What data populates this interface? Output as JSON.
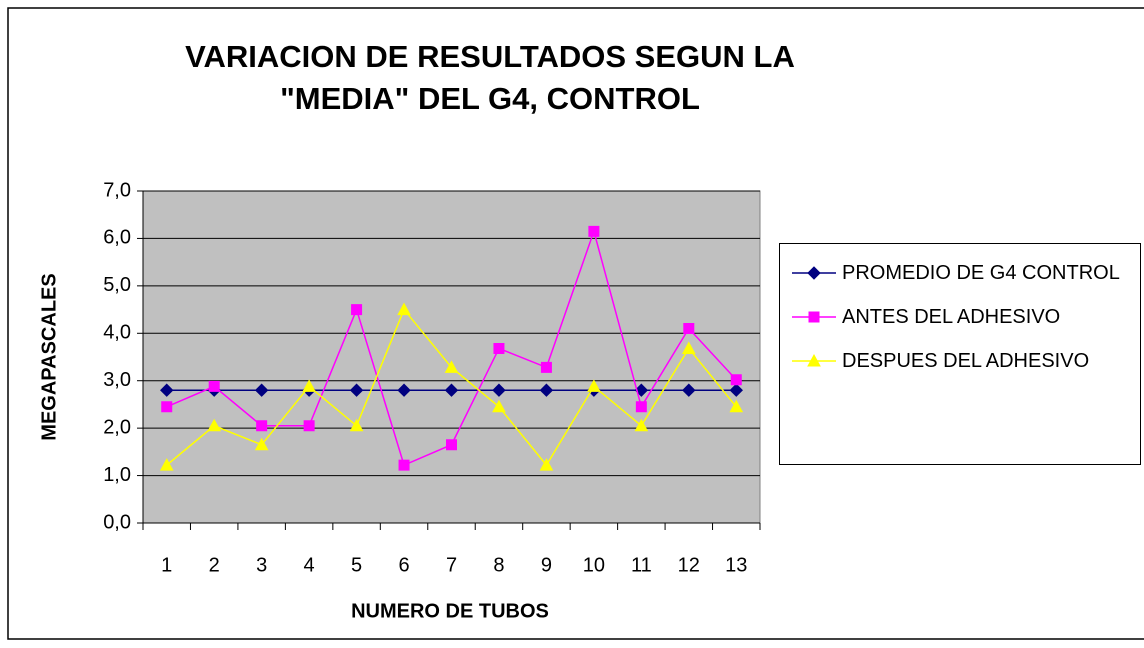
{
  "chart_data": {
    "type": "line",
    "title": "VARIACION DE RESULTADOS SEGUN LA \"MEDIA\" DEL G4, CONTROL",
    "x_label": "NUMERO DE TUBOS",
    "y_label": "MEGAPASCALES",
    "categories": [
      "1",
      "2",
      "3",
      "4",
      "5",
      "6",
      "7",
      "8",
      "9",
      "10",
      "11",
      "12",
      "13"
    ],
    "series": [
      {
        "name": "PROMEDIO DE G4 CONTROL",
        "color": "#000080",
        "marker": "diamond",
        "values": [
          2.8,
          2.8,
          2.8,
          2.8,
          2.8,
          2.8,
          2.8,
          2.8,
          2.8,
          2.8,
          2.8,
          2.8,
          2.8
        ]
      },
      {
        "name": "ANTES DEL ADHESIVO",
        "color": "#ff00ff",
        "marker": "square",
        "values": [
          2.45,
          2.88,
          2.05,
          2.05,
          4.5,
          1.22,
          1.65,
          3.68,
          3.28,
          6.15,
          2.45,
          4.1,
          3.02
        ]
      },
      {
        "name": "DESPUES DEL ADHESIVO",
        "color": "#ffff00",
        "marker": "triangle",
        "values": [
          1.22,
          2.05,
          1.65,
          2.88,
          2.05,
          4.5,
          3.28,
          2.45,
          1.22,
          2.88,
          2.05,
          3.68,
          2.45
        ]
      }
    ],
    "ylim": [
      0,
      7
    ],
    "yticks": [
      {
        "value": 0,
        "label": "0,0"
      },
      {
        "value": 1,
        "label": "1,0"
      },
      {
        "value": 2,
        "label": "2,0"
      },
      {
        "value": 3,
        "label": "3,0"
      },
      {
        "value": 4,
        "label": "4,0"
      },
      {
        "value": 5,
        "label": "5,0"
      },
      {
        "value": 6,
        "label": "6,0"
      },
      {
        "value": 7,
        "label": "7,0"
      }
    ],
    "grid": true,
    "legend": "right"
  }
}
